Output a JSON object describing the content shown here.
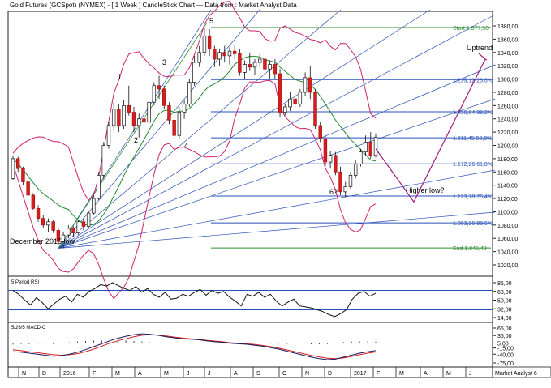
{
  "header": {
    "title": "Gold Futures (GCSpot) (NYMEX) -  [ 1 Week ] CandleStick Chart — Data from : Market Analyst Data"
  },
  "chart_data": [
    {
      "type": "candlestick",
      "panel": "price",
      "series_name": "Gold Futures (GCSpot)",
      "ylim": [
        1000,
        1390
      ],
      "ticks": [
        "1380,00",
        "1360,00",
        "1340,00",
        "1320,00",
        "1300,00",
        "1280,00",
        "1260,00",
        "1240,00",
        "1220,00",
        "1200,00",
        "1180,00",
        "1160,00",
        "1140,00",
        "1120,00",
        "1100,00",
        "1080,00",
        "1060,00",
        "1040,00",
        "1020,00"
      ],
      "candles": [
        {
          "o": 1150,
          "h": 1185,
          "l": 1148,
          "c": 1180
        },
        {
          "o": 1180,
          "h": 1183,
          "l": 1160,
          "c": 1165
        },
        {
          "o": 1165,
          "h": 1168,
          "l": 1140,
          "c": 1145
        },
        {
          "o": 1145,
          "h": 1148,
          "l": 1120,
          "c": 1125
        },
        {
          "o": 1125,
          "h": 1128,
          "l": 1103,
          "c": 1105
        },
        {
          "o": 1105,
          "h": 1110,
          "l": 1085,
          "c": 1090
        },
        {
          "o": 1090,
          "h": 1095,
          "l": 1075,
          "c": 1080
        },
        {
          "o": 1080,
          "h": 1090,
          "l": 1070,
          "c": 1085
        },
        {
          "o": 1085,
          "h": 1088,
          "l": 1068,
          "c": 1072
        },
        {
          "o": 1072,
          "h": 1075,
          "l": 1050,
          "c": 1055
        },
        {
          "o": 1055,
          "h": 1070,
          "l": 1045,
          "c": 1065
        },
        {
          "o": 1065,
          "h": 1080,
          "l": 1060,
          "c": 1075
        },
        {
          "o": 1075,
          "h": 1078,
          "l": 1062,
          "c": 1068
        },
        {
          "o": 1068,
          "h": 1088,
          "l": 1065,
          "c": 1085
        },
        {
          "o": 1085,
          "h": 1090,
          "l": 1072,
          "c": 1078
        },
        {
          "o": 1078,
          "h": 1100,
          "l": 1075,
          "c": 1098
        },
        {
          "o": 1098,
          "h": 1125,
          "l": 1095,
          "c": 1120
        },
        {
          "o": 1120,
          "h": 1160,
          "l": 1118,
          "c": 1155
        },
        {
          "o": 1155,
          "h": 1205,
          "l": 1150,
          "c": 1200
        },
        {
          "o": 1200,
          "h": 1235,
          "l": 1195,
          "c": 1230
        },
        {
          "o": 1230,
          "h": 1265,
          "l": 1222,
          "c": 1255
        },
        {
          "o": 1255,
          "h": 1262,
          "l": 1220,
          "c": 1230
        },
        {
          "o": 1230,
          "h": 1268,
          "l": 1225,
          "c": 1260
        },
        {
          "o": 1260,
          "h": 1290,
          "l": 1245,
          "c": 1250
        },
        {
          "o": 1250,
          "h": 1258,
          "l": 1220,
          "c": 1230
        },
        {
          "o": 1230,
          "h": 1248,
          "l": 1212,
          "c": 1240
        },
        {
          "o": 1240,
          "h": 1262,
          "l": 1225,
          "c": 1235
        },
        {
          "o": 1235,
          "h": 1270,
          "l": 1230,
          "c": 1265
        },
        {
          "o": 1265,
          "h": 1295,
          "l": 1260,
          "c": 1290
        },
        {
          "o": 1290,
          "h": 1305,
          "l": 1270,
          "c": 1285
        },
        {
          "o": 1285,
          "h": 1290,
          "l": 1255,
          "c": 1260
        },
        {
          "o": 1260,
          "h": 1265,
          "l": 1232,
          "c": 1238
        },
        {
          "o": 1238,
          "h": 1245,
          "l": 1210,
          "c": 1215
        },
        {
          "o": 1215,
          "h": 1258,
          "l": 1210,
          "c": 1250
        },
        {
          "o": 1250,
          "h": 1268,
          "l": 1240,
          "c": 1262
        },
        {
          "o": 1262,
          "h": 1300,
          "l": 1258,
          "c": 1295
        },
        {
          "o": 1295,
          "h": 1335,
          "l": 1290,
          "c": 1325
        },
        {
          "o": 1325,
          "h": 1350,
          "l": 1318,
          "c": 1340
        },
        {
          "o": 1340,
          "h": 1377.5,
          "l": 1335,
          "c": 1365
        },
        {
          "o": 1365,
          "h": 1375,
          "l": 1335,
          "c": 1345
        },
        {
          "o": 1345,
          "h": 1350,
          "l": 1318,
          "c": 1330
        },
        {
          "o": 1330,
          "h": 1345,
          "l": 1320,
          "c": 1340
        },
        {
          "o": 1340,
          "h": 1350,
          "l": 1325,
          "c": 1335
        },
        {
          "o": 1335,
          "h": 1348,
          "l": 1322,
          "c": 1342
        },
        {
          "o": 1342,
          "h": 1352,
          "l": 1330,
          "c": 1338
        },
        {
          "o": 1338,
          "h": 1345,
          "l": 1305,
          "c": 1310
        },
        {
          "o": 1310,
          "h": 1328,
          "l": 1300,
          "c": 1322
        },
        {
          "o": 1322,
          "h": 1340,
          "l": 1312,
          "c": 1318
        },
        {
          "o": 1318,
          "h": 1330,
          "l": 1306,
          "c": 1325
        },
        {
          "o": 1325,
          "h": 1338,
          "l": 1318,
          "c": 1330
        },
        {
          "o": 1330,
          "h": 1340,
          "l": 1310,
          "c": 1315
        },
        {
          "o": 1315,
          "h": 1328,
          "l": 1300,
          "c": 1322
        },
        {
          "o": 1322,
          "h": 1330,
          "l": 1300,
          "c": 1308
        },
        {
          "o": 1308,
          "h": 1315,
          "l": 1242,
          "c": 1250
        },
        {
          "o": 1250,
          "h": 1262,
          "l": 1245,
          "c": 1258
        },
        {
          "o": 1258,
          "h": 1280,
          "l": 1252,
          "c": 1270
        },
        {
          "o": 1270,
          "h": 1278,
          "l": 1255,
          "c": 1262
        },
        {
          "o": 1262,
          "h": 1285,
          "l": 1258,
          "c": 1280
        },
        {
          "o": 1280,
          "h": 1310,
          "l": 1275,
          "c": 1302
        },
        {
          "o": 1302,
          "h": 1320,
          "l": 1270,
          "c": 1280
        },
        {
          "o": 1280,
          "h": 1285,
          "l": 1225,
          "c": 1230
        },
        {
          "o": 1230,
          "h": 1235,
          "l": 1205,
          "c": 1210
        },
        {
          "o": 1210,
          "h": 1215,
          "l": 1168,
          "c": 1175
        },
        {
          "o": 1175,
          "h": 1192,
          "l": 1165,
          "c": 1185
        },
        {
          "o": 1185,
          "h": 1190,
          "l": 1155,
          "c": 1160
        },
        {
          "o": 1160,
          "h": 1168,
          "l": 1125,
          "c": 1130
        },
        {
          "o": 1130,
          "h": 1145,
          "l": 1122,
          "c": 1138
        },
        {
          "o": 1138,
          "h": 1160,
          "l": 1135,
          "c": 1155
        },
        {
          "o": 1155,
          "h": 1178,
          "l": 1150,
          "c": 1172
        },
        {
          "o": 1172,
          "h": 1195,
          "l": 1168,
          "c": 1190
        },
        {
          "o": 1190,
          "h": 1215,
          "l": 1185,
          "c": 1205
        },
        {
          "o": 1205,
          "h": 1220,
          "l": 1180,
          "c": 1185
        },
        {
          "o": 1185,
          "h": 1218,
          "l": 1182,
          "c": 1212
        }
      ],
      "moving_average_color": "#1f8a2e",
      "bollinger_color": "#d0226e",
      "fibonacci_levels": [
        {
          "label": "Start 1.377,50",
          "value": 1377.5,
          "color": "#2f8f2f"
        },
        {
          "label": "1.299,12 23,6%",
          "value": 1299.12,
          "color": "#2850b8"
        },
        {
          "label": "1.250,64 38,2%",
          "value": 1250.64,
          "color": "#2850b8"
        },
        {
          "label": "1.211,45 50,0%",
          "value": 1211.45,
          "color": "#2850b8"
        },
        {
          "label": "1.172,26 61,8%",
          "value": 1172.26,
          "color": "#2850b8"
        },
        {
          "label": "1.123,78 76,4%",
          "value": 1123.78,
          "color": "#2850b8"
        },
        {
          "label": "1.083,26 88,6%",
          "value": 1083.26,
          "color": "#2850b8"
        },
        {
          "label": "End 1.045,40",
          "value": 1045.4,
          "color": "#2f8f2f"
        }
      ],
      "projection_path_values": [
        1195,
        1115,
        1330
      ],
      "annotations": [
        "1",
        "2",
        "3",
        "4",
        "5",
        "6?",
        "Uptrend",
        "Higher low?",
        "December 2015 low"
      ]
    },
    {
      "type": "line",
      "panel": "rsi",
      "label": "5 Period RSI",
      "ticks": [
        "86,00",
        "68,00",
        "50,00",
        "32,00",
        "14,00"
      ],
      "reference_levels": [
        70,
        30
      ],
      "values": [
        70,
        62,
        50,
        40,
        55,
        45,
        32,
        42,
        52,
        58,
        46,
        62,
        56,
        68,
        74,
        82,
        79,
        86,
        80,
        74,
        70,
        78,
        66,
        74,
        62,
        56,
        66,
        52,
        54,
        62,
        58,
        66,
        72,
        60,
        70,
        64,
        68,
        56,
        48,
        38,
        62,
        58,
        66,
        56,
        62,
        48,
        38,
        46,
        52,
        38,
        36,
        34,
        30,
        26,
        20,
        16,
        22,
        30,
        52,
        64,
        68,
        58,
        64
      ]
    },
    {
      "type": "line",
      "panel": "macd",
      "label": "5/26/5 MACD-C",
      "ticks": [
        "65,00",
        "35,00",
        "5,00",
        "-15,00",
        "-40,00",
        "-75,00"
      ],
      "macd": [
        -30,
        -32,
        -36,
        -40,
        -44,
        -48,
        -46,
        -40,
        -32,
        -22,
        -10,
        2,
        14,
        24,
        32,
        38,
        42,
        40,
        36,
        30,
        26,
        22,
        20,
        18,
        14,
        10,
        8,
        4,
        2,
        0,
        -4,
        -8,
        -14,
        -20,
        -28,
        -36,
        -44,
        -52,
        -58,
        -62,
        -60,
        -52,
        -44,
        -36,
        -30,
        -26
      ],
      "signal": [
        -22,
        -26,
        -30,
        -34,
        -38,
        -42,
        -44,
        -42,
        -38,
        -30,
        -20,
        -8,
        4,
        14,
        22,
        30,
        36,
        38,
        36,
        33,
        29,
        25,
        22,
        20,
        16,
        13,
        10,
        6,
        4,
        2,
        -1,
        -5,
        -10,
        -16,
        -23,
        -30,
        -38,
        -45,
        -51,
        -56,
        -58,
        -55,
        -49,
        -42,
        -36,
        -31
      ],
      "macd_color": "#1a1a60",
      "signal_color": "#d22020"
    }
  ],
  "xaxis": {
    "labels": [
      "N",
      "D",
      "2016",
      "F",
      "M",
      "A",
      "M",
      "J",
      "J",
      "A",
      "S",
      "O",
      "N",
      "D",
      "2017",
      "F",
      "M",
      "A",
      "M",
      "J"
    ],
    "footer_tag": "Market Analyst 6"
  }
}
